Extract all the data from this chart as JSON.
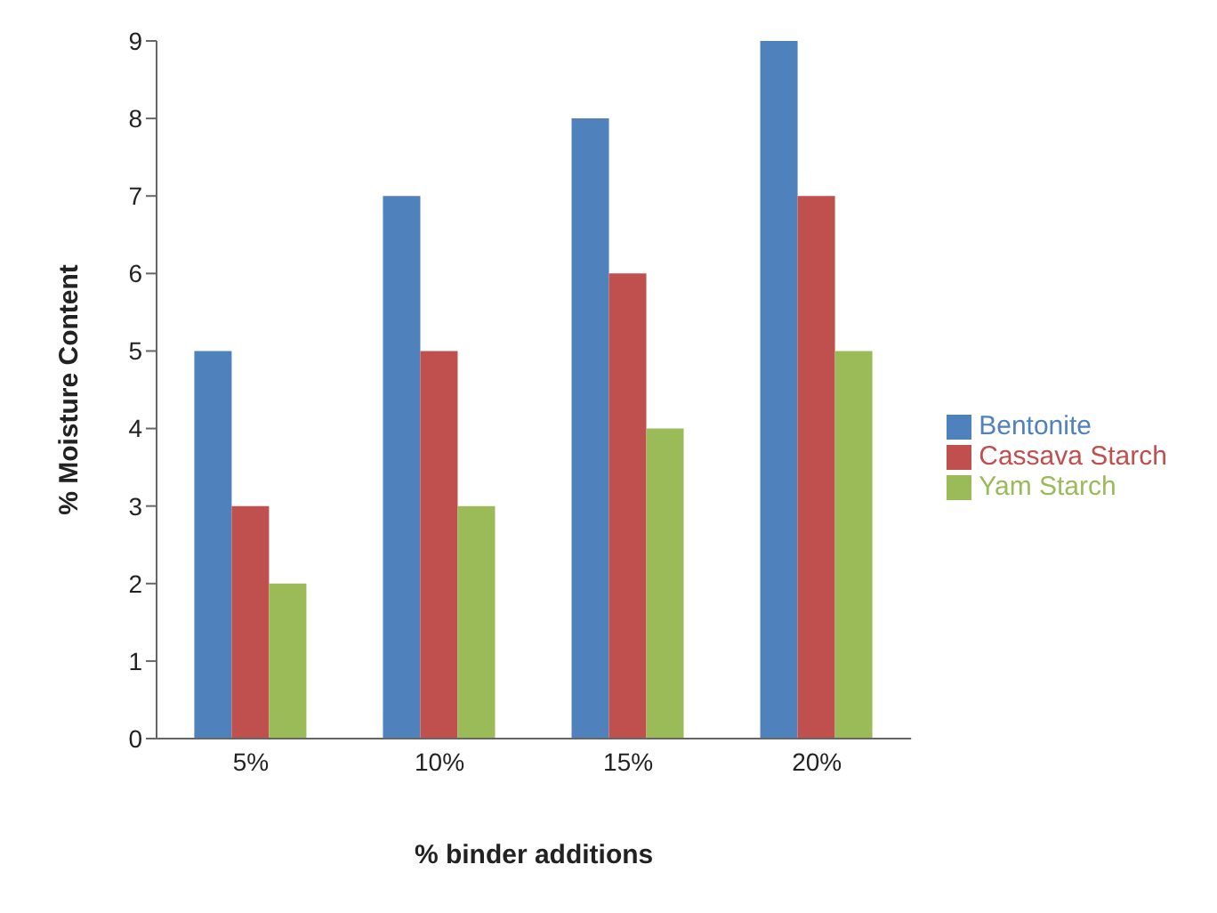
{
  "chart_data": {
    "type": "bar",
    "xlabel": "% binder additions",
    "ylabel": "% Moisture Content",
    "categories": [
      "5%",
      "10%",
      "15%",
      "20%"
    ],
    "series": [
      {
        "name": "Bentonite",
        "color": "#4f81bd",
        "values": [
          5,
          7,
          8,
          9
        ]
      },
      {
        "name": "Cassava Starch",
        "color": "#c0504d",
        "values": [
          3,
          5,
          6,
          7
        ]
      },
      {
        "name": "Yam Starch",
        "color": "#9bbb59",
        "values": [
          2,
          3,
          4,
          5
        ]
      }
    ],
    "ylim": [
      0,
      9
    ],
    "yticks": [
      0,
      1,
      2,
      3,
      4,
      5,
      6,
      7,
      8,
      9
    ],
    "legend": "right"
  }
}
